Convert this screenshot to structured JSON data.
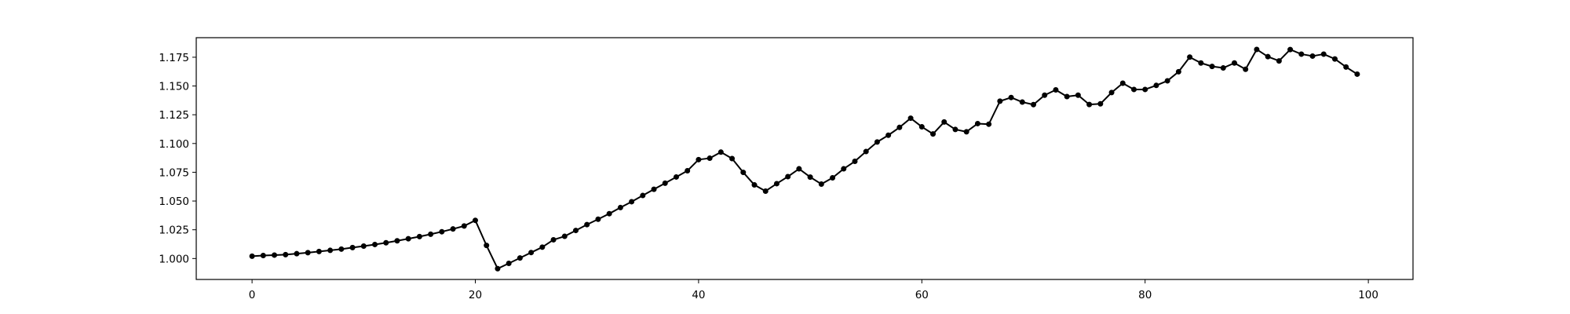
{
  "chart_data": {
    "type": "line",
    "x": [
      0,
      1,
      2,
      3,
      4,
      5,
      6,
      7,
      8,
      9,
      10,
      11,
      12,
      13,
      14,
      15,
      16,
      17,
      18,
      19,
      20,
      21,
      22,
      23,
      24,
      25,
      26,
      27,
      28,
      29,
      30,
      31,
      32,
      33,
      34,
      35,
      36,
      37,
      38,
      39,
      40,
      41,
      42,
      43,
      44,
      45,
      46,
      47,
      48,
      49,
      50,
      51,
      52,
      53,
      54,
      55,
      56,
      57,
      58,
      59,
      60,
      61,
      62,
      63,
      64,
      65,
      66,
      67,
      68,
      69,
      70,
      71,
      72,
      73,
      74,
      75,
      76,
      77,
      78,
      79,
      80,
      81,
      82,
      83,
      84,
      85,
      86,
      87,
      88,
      89,
      90,
      91,
      92,
      93,
      94,
      95,
      96,
      97,
      98,
      99
    ],
    "series": [
      {
        "color": "#000000",
        "values": [
          1.002,
          1.0026,
          1.003,
          1.0034,
          1.0042,
          1.0051,
          1.0061,
          1.0071,
          1.0082,
          1.0095,
          1.0108,
          1.0122,
          1.0137,
          1.0154,
          1.0172,
          1.0191,
          1.0211,
          1.0233,
          1.0257,
          1.0283,
          1.0332,
          1.0114,
          0.9912,
          0.9958,
          1.0005,
          1.0052,
          1.0099,
          1.0163,
          1.0193,
          1.0244,
          1.0295,
          1.0342,
          1.039,
          1.0443,
          1.0494,
          1.0548,
          1.0602,
          1.0655,
          1.0709,
          1.0763,
          1.086,
          1.0872,
          1.0925,
          1.0869,
          1.0749,
          1.064,
          1.0586,
          1.0651,
          1.0712,
          1.078,
          1.0708,
          1.0647,
          1.0702,
          1.078,
          1.0845,
          1.093,
          1.1013,
          1.1072,
          1.114,
          1.122,
          1.1145,
          1.1083,
          1.1187,
          1.1122,
          1.1102,
          1.1173,
          1.1168,
          1.1368,
          1.14,
          1.136,
          1.1338,
          1.142,
          1.1466,
          1.1408,
          1.142,
          1.1339,
          1.1345,
          1.1443,
          1.1524,
          1.147,
          1.147,
          1.1505,
          1.1545,
          1.1624,
          1.1751,
          1.17,
          1.167,
          1.1657,
          1.17,
          1.1645,
          1.1818,
          1.1755,
          1.1718,
          1.1817,
          1.1777,
          1.176,
          1.1777,
          1.1735,
          1.1665,
          1.1603
        ]
      }
    ],
    "xlim": [
      -5,
      104
    ],
    "ylim": [
      0.9818,
      1.192
    ],
    "xticks": [
      0,
      20,
      40,
      60,
      80,
      100
    ],
    "yticks": [
      1.0,
      1.025,
      1.05,
      1.075,
      1.1,
      1.125,
      1.15,
      1.175
    ],
    "xtick_labels": [
      "0",
      "20",
      "40",
      "60",
      "80",
      "100"
    ],
    "ytick_labels": [
      "1.000",
      "1.025",
      "1.050",
      "1.075",
      "1.100",
      "1.125",
      "1.150",
      "1.175"
    ],
    "marker": "circle",
    "grid": false,
    "legend": "none",
    "title": "",
    "xlabel": "",
    "ylabel": ""
  }
}
